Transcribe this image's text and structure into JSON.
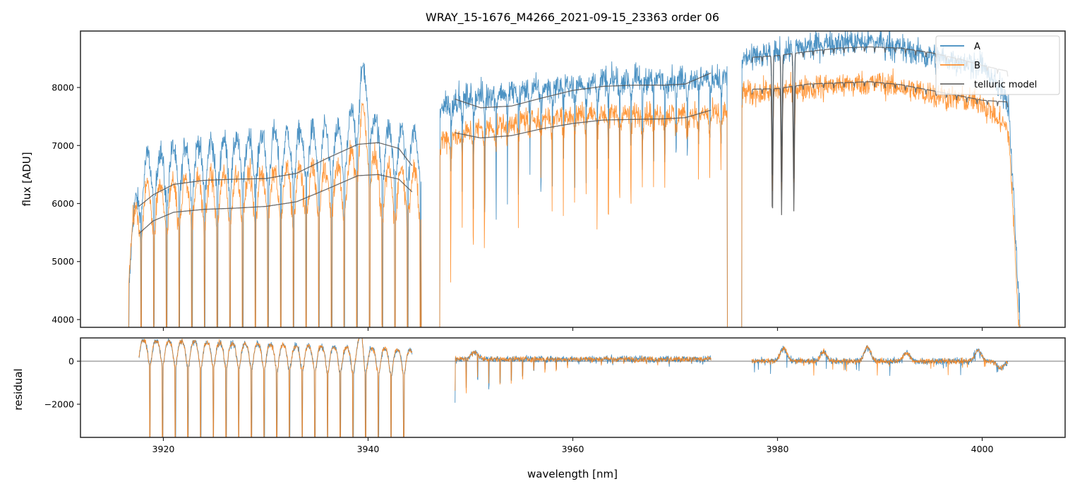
{
  "chart_data": [
    {
      "panel": "flux",
      "type": "line",
      "title": "WRAY_15-1676_M4266_2021-09-15_23363  order 06",
      "xlabel": "",
      "ylabel": "flux [ADU]",
      "xlim": [
        3911.9,
        4008.1
      ],
      "ylim": [
        3866,
        8973
      ],
      "xticks": [
        3920,
        3940,
        3960,
        3980,
        4000
      ],
      "xtick_labels_shown": false,
      "yticks": [
        4000,
        5000,
        6000,
        7000,
        8000
      ],
      "ytick_labels": [
        "4000",
        "5000",
        "6000",
        "7000",
        "8000"
      ],
      "grid": false,
      "legend": {
        "placement": "top-right",
        "entries": [
          {
            "label": "A",
            "color": "#1f77b4"
          },
          {
            "label": "B",
            "color": "#ff7f0e"
          },
          {
            "label": "telluric model",
            "color": "#555555"
          }
        ]
      },
      "segments": [
        {
          "x_start": 3916.6,
          "x_end": 3945.2,
          "absorption_period_nm": 1.24
        },
        {
          "x_start": 3947.0,
          "x_end": 3975.1,
          "absorption_period_nm": 1.1
        },
        {
          "x_start": 3976.5,
          "x_end": 4003.7,
          "absorption_period_nm": 1.0
        }
      ],
      "series": [
        {
          "name": "A",
          "color": "#1f77b4",
          "continuum": {
            "x": [
              3916.6,
              3918,
              3922,
              3926,
              3930,
              3934,
              3938,
              3939.5,
              3941,
              3944,
              3945.2,
              3947.0,
              3950,
              3955,
              3960,
              3965,
              3970,
              3975.1,
              3976.5,
              3980,
              3985,
              3990,
              3995,
              4000,
              4002.5,
              4003.7
            ],
            "y": [
              5400,
              6850,
              7050,
              7150,
              7250,
              7300,
              7350,
              8450,
              7350,
              7300,
              7250,
              7700,
              7850,
              7950,
              8050,
              8150,
              8150,
              8200,
              8500,
              8600,
              8800,
              8800,
              8550,
              8400,
              7800,
              6700
            ]
          }
        },
        {
          "name": "B",
          "color": "#ff7f0e",
          "continuum": {
            "x": [
              3916.6,
              3918,
              3922,
              3926,
              3930,
              3934,
              3938,
              3939.5,
              3941,
              3944,
              3945.2,
              3947.0,
              3950,
              3955,
              3960,
              3965,
              3970,
              3975.1,
              3976.5,
              3980,
              3985,
              3990,
              3995,
              4000,
              4002.5,
              4003.7
            ],
            "y": [
              5600,
              6350,
              6500,
              6550,
              6600,
              6650,
              6700,
              7750,
              6650,
              6650,
              6600,
              7100,
              7250,
              7450,
              7550,
              7550,
              7550,
              7550,
              7900,
              7950,
              8050,
              8100,
              7900,
              7750,
              7300,
              6300
            ]
          }
        },
        {
          "name": "telluric model (A)",
          "color": "#555555",
          "x": [
            3917.6,
            3919,
            3921,
            3924,
            3927,
            3930,
            3933,
            3936,
            3939,
            3941,
            3943,
            3944.3,
            3948.5,
            3951,
            3954,
            3957,
            3960,
            3963,
            3966,
            3969,
            3971,
            3973.5,
            3977.5,
            3980,
            3983,
            3986,
            3989,
            3992,
            3995,
            3998,
            4000,
            4002.5
          ],
          "y": [
            5950,
            6150,
            6330,
            6400,
            6420,
            6430,
            6520,
            6780,
            7020,
            7050,
            6950,
            6650,
            7800,
            7650,
            7680,
            7820,
            7950,
            8020,
            8040,
            8040,
            8060,
            8250,
            8520,
            8550,
            8620,
            8680,
            8700,
            8680,
            8600,
            8480,
            8380,
            8280
          ]
        },
        {
          "name": "telluric model (B)",
          "color": "#555555",
          "x": [
            3917.6,
            3919,
            3921,
            3924,
            3927,
            3930,
            3933,
            3936,
            3939,
            3941,
            3943,
            3944.3,
            3948.5,
            3951,
            3954,
            3957,
            3960,
            3963,
            3966,
            3969,
            3971,
            3973.5,
            3977.5,
            3980,
            3983,
            3986,
            3989,
            3992,
            3995,
            3998,
            4000,
            4002.5
          ],
          "y": [
            5480,
            5700,
            5850,
            5900,
            5920,
            5950,
            6030,
            6250,
            6480,
            6500,
            6420,
            6200,
            7220,
            7130,
            7170,
            7290,
            7380,
            7440,
            7450,
            7460,
            7480,
            7610,
            7970,
            7980,
            8060,
            8080,
            8100,
            8050,
            7950,
            7850,
            7780,
            7750
          ]
        }
      ],
      "deep_telluric_lines_nm": [
        3979.5,
        3980.4,
        3981.6
      ]
    },
    {
      "panel": "residual",
      "type": "line",
      "title": "",
      "xlabel": "wavelength [nm]",
      "ylabel": "residual",
      "xlim": [
        3911.9,
        4008.1
      ],
      "ylim": [
        -3541,
        1082
      ],
      "xticks": [
        3920,
        3940,
        3960,
        3980,
        4000
      ],
      "xtick_labels": [
        "3920",
        "3940",
        "3960",
        "3980",
        "4000"
      ],
      "yticks": [
        -2000,
        0
      ],
      "ytick_labels": [
        "−2000",
        "0"
      ],
      "reference_line_y": 0,
      "grid": false,
      "segments": [
        {
          "x_start": 3917.6,
          "x_end": 3944.3,
          "baseline": 700,
          "dip_depth_min": -3600
        },
        {
          "x_start": 3948.5,
          "x_end": 3973.5,
          "baseline": 100,
          "dip_depth_min": -2300
        },
        {
          "x_start": 3977.5,
          "x_end": 4002.5,
          "baseline": 0,
          "dip_depth_min": -1000
        }
      ],
      "series": [
        {
          "name": "A",
          "color": "#1f77b4"
        },
        {
          "name": "B",
          "color": "#ff7f0e"
        }
      ]
    }
  ]
}
